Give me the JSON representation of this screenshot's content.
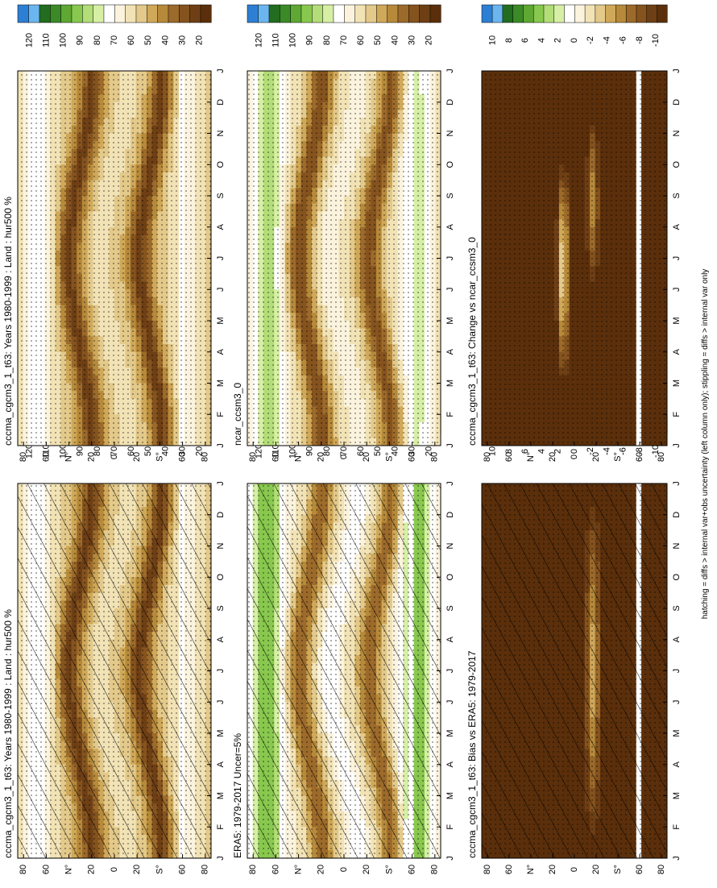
{
  "figure": {
    "rotation": "rotated 90 degrees clockwise (portrait page of a landscape figure)",
    "footnote": "hatching = diffs > internal var+obs uncertainty (left column only); stippling = diffs > internal var only"
  },
  "colors": {
    "absolute_scale": [
      "#5b2f0b",
      "#6e3f15",
      "#85531e",
      "#9c6a2a",
      "#b68a3a",
      "#cfa859",
      "#e3c98a",
      "#f2e3b6",
      "#fbf3dd",
      "#ffffff",
      "#d6efa5",
      "#b3dd78",
      "#88c84e",
      "#5ea833",
      "#3b8a27",
      "#226d1f",
      "#6bb6ee",
      "#2d7fd3"
    ],
    "difference_scale": [
      "#5b2f0b",
      "#6e3f15",
      "#85531e",
      "#9c6a2a",
      "#b68a3a",
      "#cfa859",
      "#e3c98a",
      "#f2e3b6",
      "#fbf3dd",
      "#ffffff",
      "#d6efa5",
      "#b3dd78",
      "#88c84e",
      "#5ea833",
      "#3b8a27",
      "#226d1f",
      "#6bb6ee",
      "#2d7fd3"
    ]
  },
  "chart_data": [
    {
      "type": "heatmap",
      "title": "cccma_cgcm3_1_t63: Years 1980-1999 : Land : hur500 %",
      "x_ticks": [
        "J",
        "F",
        "M",
        "A",
        "M",
        "J",
        "J",
        "A",
        "S",
        "O",
        "N",
        "D",
        "J"
      ],
      "y_ticks": [
        "80",
        "60",
        "N°",
        "20",
        "0",
        "20",
        "S°",
        "60",
        "80"
      ],
      "colorbar_ticks": [
        "120",
        "110",
        "100",
        "90",
        "80",
        "70",
        "60",
        "50",
        "40",
        "30",
        "20"
      ],
      "overlay": "hatched and stippled"
    },
    {
      "type": "heatmap",
      "title": "cccma_cgcm3_1_t63: Years 1980-1999 : Land : hur500 %",
      "x_ticks": [
        "J",
        "F",
        "M",
        "A",
        "M",
        "J",
        "J",
        "A",
        "S",
        "O",
        "N",
        "D",
        "J"
      ],
      "y_ticks": [
        "80",
        "60",
        "N°",
        "20",
        "0",
        "20",
        "S°",
        "60",
        "80"
      ],
      "colorbar_ticks": [
        "120",
        "110",
        "100",
        "90",
        "80",
        "70",
        "60",
        "50",
        "40",
        "30",
        "20"
      ],
      "overlay": "stippled"
    },
    {
      "type": "heatmap",
      "title": "ERA5: 1979-2017 Uncer=5%",
      "x_ticks": [
        "J",
        "F",
        "M",
        "A",
        "M",
        "J",
        "J",
        "A",
        "S",
        "O",
        "N",
        "D",
        "J"
      ],
      "y_ticks": [
        "80",
        "60",
        "N°",
        "20",
        "0",
        "20",
        "S°",
        "60",
        "80"
      ],
      "colorbar_ticks": [
        "120",
        "110",
        "100",
        "90",
        "80",
        "70",
        "60",
        "50",
        "40",
        "30",
        "20"
      ],
      "overlay": "hatched and stippled"
    },
    {
      "type": "heatmap",
      "title": "ncar_ccsm3_0",
      "x_ticks": [
        "J",
        "F",
        "M",
        "A",
        "M",
        "J",
        "J",
        "A",
        "S",
        "O",
        "N",
        "D",
        "J"
      ],
      "y_ticks": [
        "80",
        "60",
        "N°",
        "20",
        "0",
        "20",
        "S°",
        "60",
        "80"
      ],
      "colorbar_ticks": [
        "120",
        "110",
        "100",
        "90",
        "80",
        "70",
        "60",
        "50",
        "40",
        "30",
        "20"
      ],
      "overlay": "stippled"
    },
    {
      "type": "heatmap",
      "title": "cccma_cgcm3_1_t63: Bias vs ERA5: 1979-2017",
      "x_ticks": [
        "J",
        "F",
        "M",
        "A",
        "M",
        "J",
        "J",
        "A",
        "S",
        "O",
        "N",
        "D",
        "J"
      ],
      "y_ticks": [
        "80",
        "60",
        "N°",
        "20",
        "0",
        "20",
        "S°",
        "60",
        "80"
      ],
      "colorbar_ticks": [
        "10",
        "8",
        "6",
        "4",
        "2",
        "0",
        "-2",
        "-4",
        "-6",
        "-8",
        "-10"
      ],
      "overlay": "hatched and stippled"
    },
    {
      "type": "heatmap",
      "title": "cccma_cgcm3_1_t63: Change vs ncar_ccsm3_0",
      "x_ticks": [
        "J",
        "F",
        "M",
        "A",
        "M",
        "J",
        "J",
        "A",
        "S",
        "O",
        "N",
        "D",
        "J"
      ],
      "y_ticks": [
        "80",
        "60",
        "N°",
        "20",
        "0",
        "20",
        "S°",
        "60",
        "80"
      ],
      "colorbar_ticks": [
        "10",
        "8",
        "6",
        "4",
        "2",
        "0",
        "-2",
        "-4",
        "-6",
        "-8",
        "-10"
      ],
      "overlay": "stippled"
    }
  ]
}
